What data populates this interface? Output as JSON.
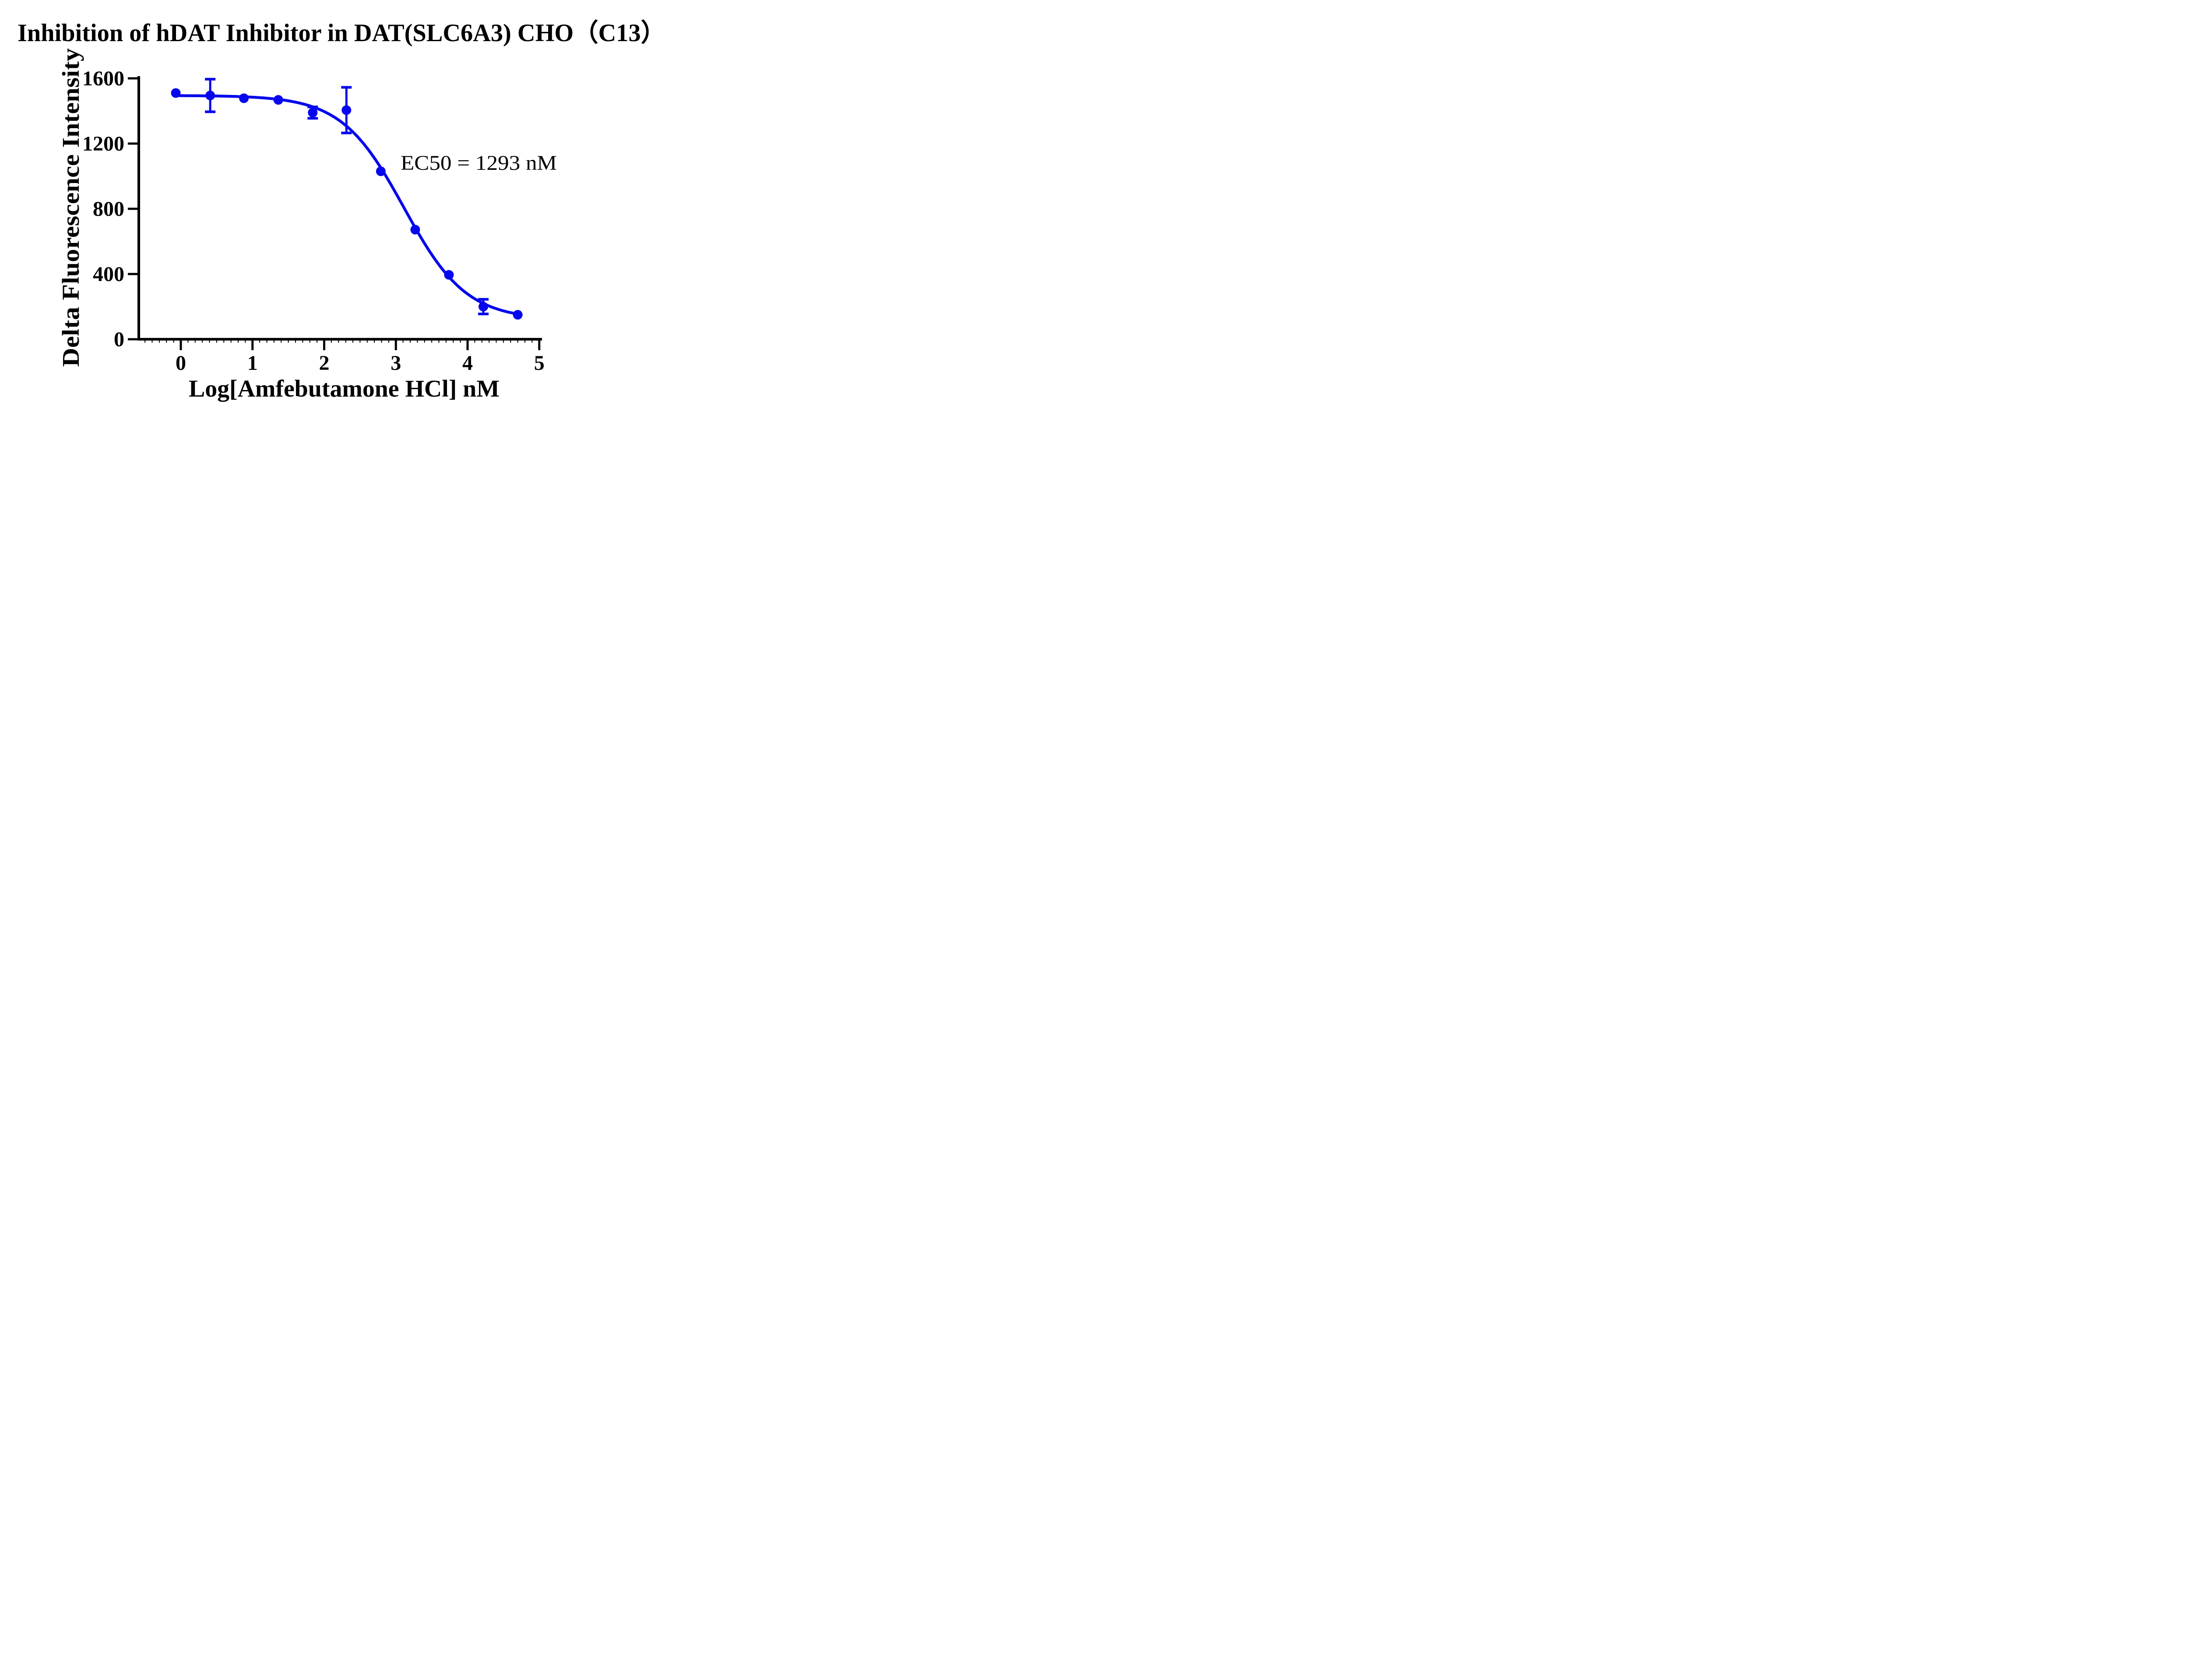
{
  "chart_data": {
    "type": "scatter",
    "title": "Inhibition of hDAT Inhibitor in DAT(SLC6A3) CHO（C13）",
    "xlabel": "Log[Amfebutamone HCl] nM",
    "ylabel": "Delta Fluorescence Intensity",
    "annotation": "EC50 = 1293 nM",
    "color": "#0606ee",
    "axis_color": "#000000",
    "background": "#ffffff",
    "grid": false,
    "legend": false,
    "xlim": [
      -0.585,
      5.04
    ],
    "ylim": [
      0,
      1600
    ],
    "x_ticks": [
      0,
      1,
      2,
      3,
      4,
      5
    ],
    "x_minor_tick_step": 0.1,
    "y_ticks": [
      0,
      400,
      800,
      1200,
      1600
    ],
    "points": {
      "x_log": [
        -0.07,
        0.41,
        0.88,
        1.36,
        1.84,
        2.31,
        2.79,
        3.27,
        3.74,
        4.22,
        4.7
      ],
      "y": [
        1510,
        1495,
        1478,
        1468,
        1390,
        1405,
        1030,
        672,
        395,
        200,
        150
      ],
      "y_err": [
        null,
        100,
        null,
        null,
        35,
        140,
        null,
        null,
        null,
        45,
        null
      ]
    },
    "fit_curve": {
      "model": "four-parameter logistic (descending)",
      "top": 1495,
      "bottom": 120,
      "log_ec50": 3.112,
      "hill_slope": 1.0,
      "ec50_nM": 1293,
      "x_start": -0.07,
      "x_end": 4.7
    }
  }
}
